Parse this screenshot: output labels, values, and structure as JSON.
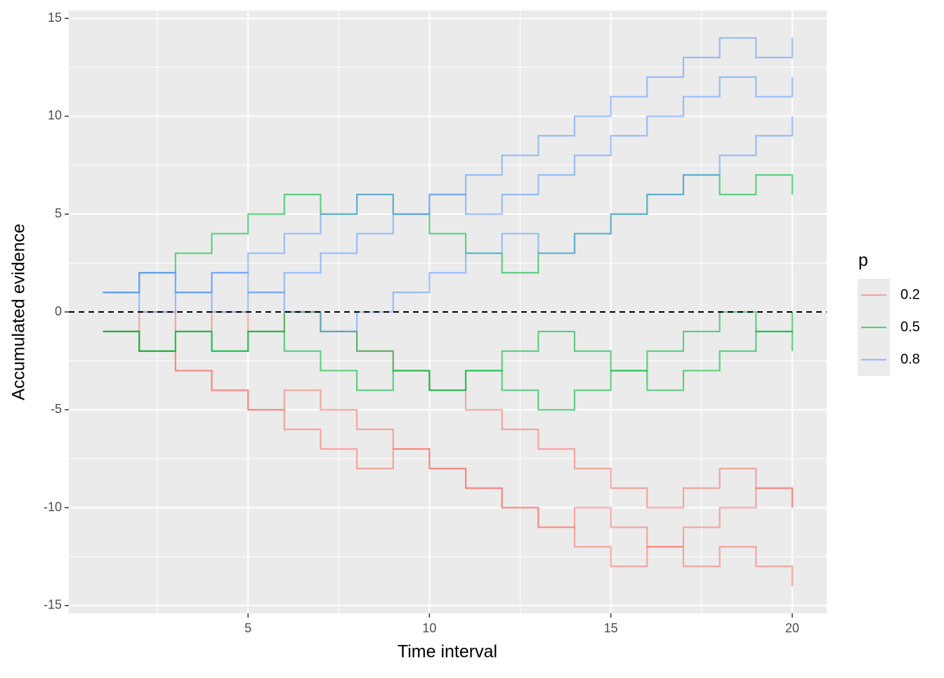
{
  "chart_data": {
    "type": "step",
    "x_label": "Time interval",
    "y_label": "Accumulated evidence",
    "legend_title": "p",
    "x": [
      1,
      2,
      3,
      4,
      5,
      6,
      7,
      8,
      9,
      10,
      11,
      12,
      13,
      14,
      15,
      16,
      17,
      18,
      19,
      20
    ],
    "hline": 0,
    "series": [
      {
        "name": "0.2",
        "color": "#F8766D",
        "values": [
          -1,
          -2,
          -3,
          -4,
          -5,
          -4,
          -5,
          -6,
          -7,
          -8,
          -9,
          -10,
          -11,
          -10,
          -11,
          -12,
          -13,
          -12,
          -13,
          -14
        ]
      },
      {
        "name": "0.2",
        "color": "#F8766D",
        "values": [
          -1,
          0,
          -1,
          0,
          -1,
          0,
          -1,
          -2,
          -3,
          -4,
          -5,
          -6,
          -7,
          -8,
          -9,
          -10,
          -9,
          -8,
          -9,
          -10
        ]
      },
      {
        "name": "0.2",
        "color": "#F8766D",
        "values": [
          -1,
          -2,
          -3,
          -4,
          -5,
          -6,
          -7,
          -8,
          -7,
          -8,
          -9,
          -10,
          -11,
          -12,
          -13,
          -12,
          -11,
          -10,
          -9,
          -10
        ]
      },
      {
        "name": "0.5",
        "color": "#00BA38",
        "values": [
          1,
          2,
          3,
          4,
          5,
          6,
          5,
          6,
          5,
          4,
          3,
          2,
          3,
          4,
          5,
          6,
          7,
          6,
          7,
          6
        ]
      },
      {
        "name": "0.5",
        "color": "#00BA38",
        "values": [
          -1,
          -2,
          -1,
          -2,
          -1,
          -2,
          -3,
          -4,
          -3,
          -4,
          -3,
          -2,
          -1,
          -2,
          -3,
          -4,
          -3,
          -2,
          -1,
          -2
        ]
      },
      {
        "name": "0.5",
        "color": "#00BA38",
        "values": [
          -1,
          -2,
          -1,
          -2,
          -1,
          0,
          -1,
          -2,
          -3,
          -4,
          -3,
          -4,
          -5,
          -4,
          -3,
          -2,
          -1,
          0,
          -1,
          0
        ]
      },
      {
        "name": "0.8",
        "color": "#619CFF",
        "values": [
          1,
          2,
          1,
          2,
          1,
          2,
          3,
          4,
          5,
          6,
          7,
          8,
          9,
          10,
          11,
          12,
          13,
          14,
          13,
          14
        ]
      },
      {
        "name": "0.8",
        "color": "#619CFF",
        "values": [
          1,
          2,
          1,
          2,
          3,
          4,
          5,
          6,
          5,
          6,
          5,
          6,
          7,
          8,
          9,
          10,
          11,
          12,
          11,
          12
        ]
      },
      {
        "name": "0.8",
        "color": "#619CFF",
        "values": [
          1,
          0,
          1,
          0,
          1,
          0,
          -1,
          0,
          1,
          2,
          3,
          4,
          3,
          4,
          5,
          6,
          7,
          8,
          9,
          10
        ]
      }
    ],
    "xlim": [
      0.06,
      20.95
    ],
    "xticks": [
      5,
      10,
      15,
      20
    ],
    "ylim": [
      -15.4,
      15.4
    ],
    "yticks": [
      -15,
      -10,
      -5,
      0,
      5,
      10,
      15
    ],
    "grid": true
  }
}
